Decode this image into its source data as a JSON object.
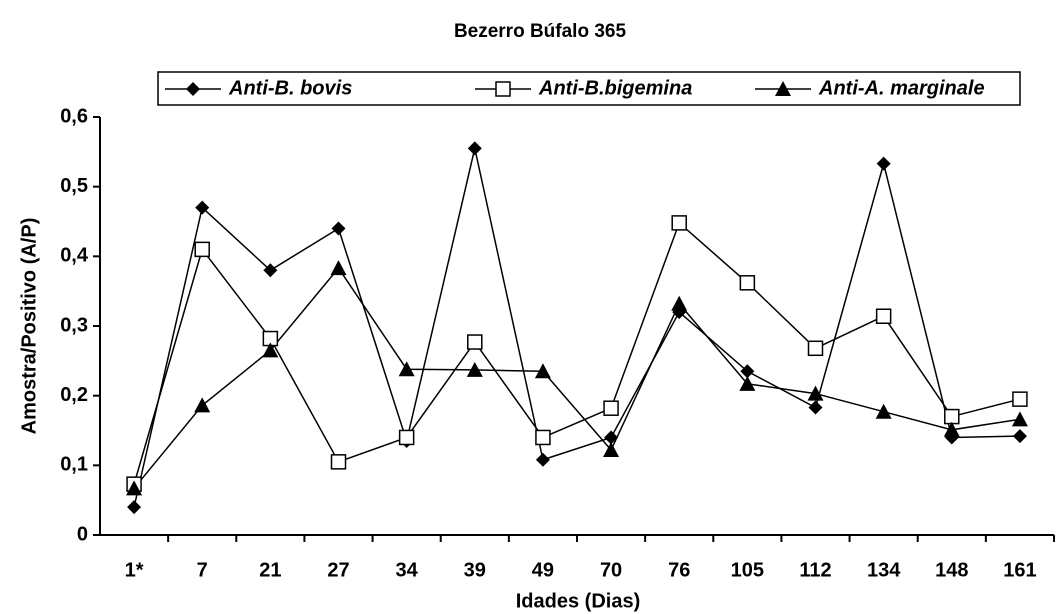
{
  "chart_data": {
    "type": "line",
    "title": "Bezerro Búfalo 365",
    "x_label": "Idades (Dias)",
    "y_label": "Amostra/Positivo (A/P)",
    "categories": [
      "1*",
      "7",
      "21",
      "27",
      "34",
      "39",
      "49",
      "70",
      "76",
      "105",
      "112",
      "134",
      "148",
      "161"
    ],
    "series": [
      {
        "name": "Anti-B. bovis",
        "color": "#000000",
        "marker": "diamond",
        "values": [
          0.04,
          0.47,
          0.38,
          0.44,
          0.135,
          0.555,
          0.108,
          0.14,
          0.32,
          0.235,
          0.183,
          0.533,
          0.14,
          0.142
        ]
      },
      {
        "name": "Anti-B.bigemina",
        "color": "#000000",
        "marker": "square",
        "values": [
          0.073,
          0.41,
          0.282,
          0.105,
          0.14,
          0.277,
          0.14,
          0.182,
          0.448,
          0.362,
          0.268,
          0.314,
          0.17,
          0.195
        ]
      },
      {
        "name": "Anti-A. marginale",
        "color": "#000000",
        "marker": "triangle",
        "values": [
          0.067,
          0.186,
          0.265,
          0.383,
          0.238,
          0.237,
          0.235,
          0.122,
          0.332,
          0.217,
          0.203,
          0.177,
          0.151,
          0.166
        ]
      }
    ],
    "ylim": [
      0,
      0.6
    ],
    "yticks": [
      0,
      {
        "value": 0.1,
        "label": "0,1"
      },
      {
        "value": 0.2,
        "label": "0,2"
      },
      {
        "value": 0.3,
        "label": "0,3"
      },
      {
        "value": 0.4,
        "label": "0,4"
      },
      {
        "value": 0.5,
        "label": "0,5"
      },
      {
        "value": 0.6,
        "label": "0,6"
      }
    ],
    "grid": false,
    "legend": "top"
  }
}
